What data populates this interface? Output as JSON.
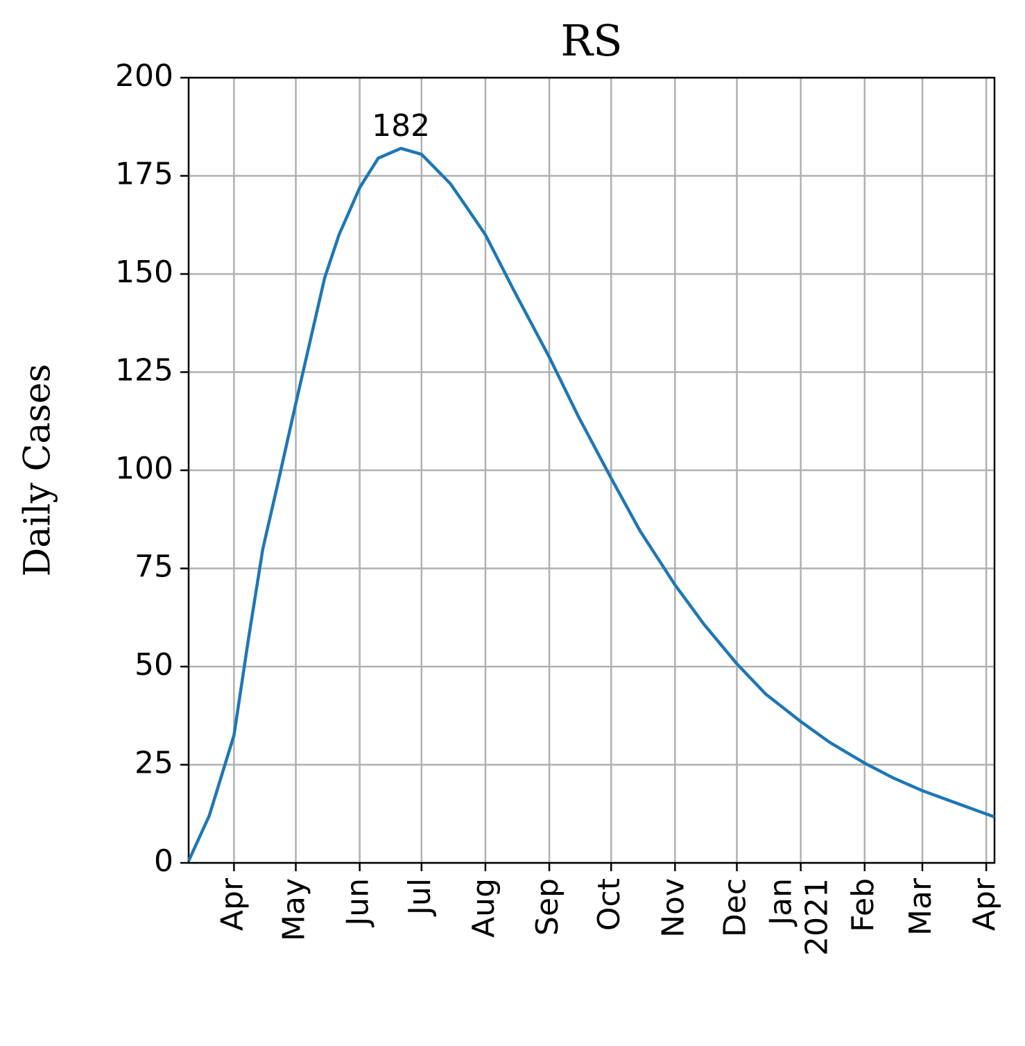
{
  "chart_data": {
    "type": "line",
    "title": "RS",
    "y_label": "Daily Cases",
    "x": [
      "2020-03-10",
      "2020-03-20",
      "2020-04-01",
      "2020-04-08",
      "2020-04-15",
      "2020-04-22",
      "2020-05-01",
      "2020-05-08",
      "2020-05-15",
      "2020-05-22",
      "2020-06-01",
      "2020-06-10",
      "2020-06-21",
      "2020-07-01",
      "2020-07-15",
      "2020-07-22",
      "2020-08-01",
      "2020-08-15",
      "2020-09-01",
      "2020-09-15",
      "2020-10-01",
      "2020-10-15",
      "2020-11-01",
      "2020-11-15",
      "2020-12-01",
      "2020-12-15",
      "2021-01-01",
      "2021-01-15",
      "2021-02-01",
      "2021-02-15",
      "2021-03-01",
      "2021-03-15",
      "2021-04-05"
    ],
    "series": [
      {
        "name": "Daily Cases",
        "color": "#1f77b4",
        "values": [
          0.5,
          12,
          32.5,
          57,
          80,
          96,
          117,
          133,
          149,
          160,
          172,
          179.5,
          182,
          180.5,
          173,
          167.7,
          160,
          145.6,
          128.8,
          113.8,
          98,
          84.6,
          70.8,
          60.8,
          50.7,
          43,
          36,
          30.7,
          25.4,
          21.6,
          18.4,
          15.7,
          11.7
        ]
      }
    ],
    "annotations": [
      {
        "text": "182",
        "x": "2020-06-21",
        "y": 182
      }
    ],
    "xlim": [
      "2020-03-10",
      "2021-04-05"
    ],
    "xticks": [
      {
        "value": "2020-04-01",
        "label": "Apr"
      },
      {
        "value": "2020-05-01",
        "label": "May"
      },
      {
        "value": "2020-06-01",
        "label": "Jun"
      },
      {
        "value": "2020-07-01",
        "label": "Jul"
      },
      {
        "value": "2020-08-01",
        "label": "Aug"
      },
      {
        "value": "2020-09-01",
        "label": "Sep"
      },
      {
        "value": "2020-10-01",
        "label": "Oct"
      },
      {
        "value": "2020-11-01",
        "label": "Nov"
      },
      {
        "value": "2020-12-01",
        "label": "Dec"
      },
      {
        "value": "2021-01-01",
        "label": "Jan\n2021"
      },
      {
        "value": "2021-02-01",
        "label": "Feb"
      },
      {
        "value": "2021-03-01",
        "label": "Mar"
      },
      {
        "value": "2021-04-01",
        "label": "Apr"
      }
    ],
    "ylim": [
      0,
      200
    ],
    "yticks": [
      0,
      25,
      50,
      75,
      100,
      125,
      150,
      175,
      200
    ],
    "grid": true
  }
}
